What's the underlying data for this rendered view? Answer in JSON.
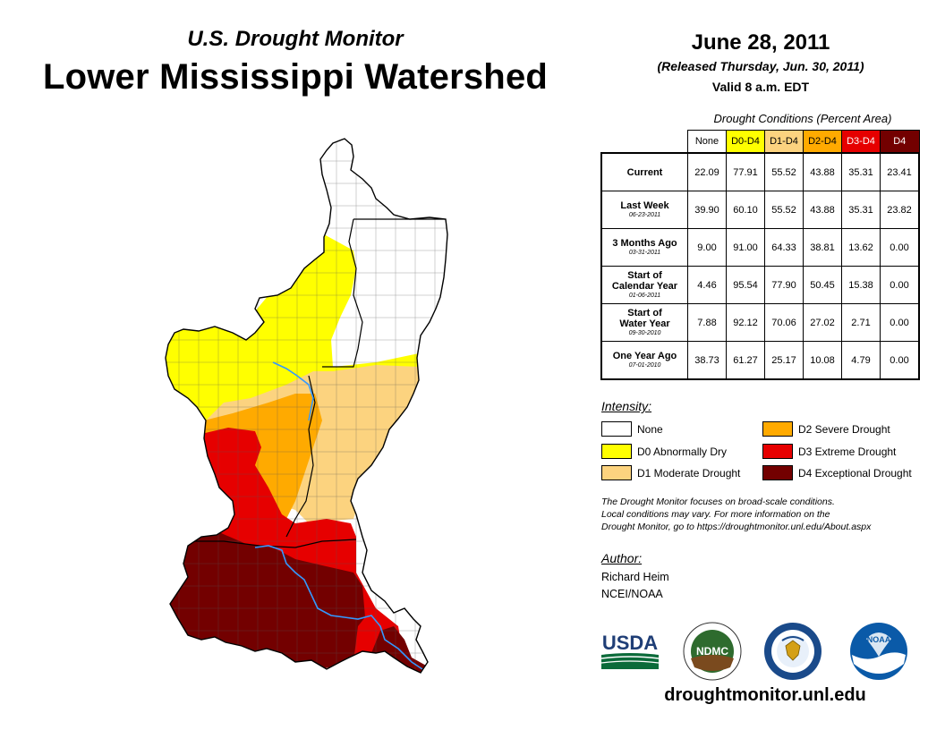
{
  "header": {
    "subtitle": "U.S. Drought Monitor",
    "title": "Lower Mississippi Watershed",
    "date": "June 28, 2011",
    "released": "(Released Thursday, Jun. 30, 2011)",
    "valid": "Valid 8 a.m. EDT"
  },
  "conditions": {
    "title": "Drought Conditions (Percent Area)",
    "columns": [
      "None",
      "D0-D4",
      "D1-D4",
      "D2-D4",
      "D3-D4",
      "D4"
    ],
    "column_colors": [
      "#ffffff",
      "#ffff00",
      "#fcd37f",
      "#ffaa00",
      "#e60000",
      "#730000"
    ],
    "rows": [
      {
        "label": "Current",
        "date": "",
        "values": [
          "22.09",
          "77.91",
          "55.52",
          "43.88",
          "35.31",
          "23.41"
        ]
      },
      {
        "label": "Last Week",
        "date": "06-23-2011",
        "values": [
          "39.90",
          "60.10",
          "55.52",
          "43.88",
          "35.31",
          "23.82"
        ]
      },
      {
        "label": "3 Months Ago",
        "date": "03-31-2011",
        "values": [
          "9.00",
          "91.00",
          "64.33",
          "38.81",
          "13.62",
          "0.00"
        ]
      },
      {
        "label_lines": [
          "Start of",
          "Calendar Year"
        ],
        "date": "01-06-2011",
        "values": [
          "4.46",
          "95.54",
          "77.90",
          "50.45",
          "15.38",
          "0.00"
        ]
      },
      {
        "label_lines": [
          "Start of",
          "Water Year"
        ],
        "date": "09-30-2010",
        "values": [
          "7.88",
          "92.12",
          "70.06",
          "27.02",
          "2.71",
          "0.00"
        ]
      },
      {
        "label": "One Year Ago",
        "date": "07-01-2010",
        "values": [
          "38.73",
          "61.27",
          "25.17",
          "10.08",
          "4.79",
          "0.00"
        ]
      }
    ]
  },
  "legend": {
    "title": "Intensity:",
    "items": [
      {
        "label": "None",
        "color": "#ffffff"
      },
      {
        "label": "D0 Abnormally Dry",
        "color": "#ffff00"
      },
      {
        "label": "D1 Moderate Drought",
        "color": "#fcd37f"
      },
      {
        "label": "D2 Severe Drought",
        "color": "#ffaa00"
      },
      {
        "label": "D3 Extreme Drought",
        "color": "#e60000"
      },
      {
        "label": "D4 Exceptional Drought",
        "color": "#730000"
      }
    ]
  },
  "note": {
    "line1": "The Drought Monitor focuses on broad-scale conditions.",
    "line2": "Local conditions may vary. For more information on the",
    "line3": "Drought Monitor, go to https://droughtmonitor.unl.edu/About.aspx"
  },
  "author": {
    "title": "Author:",
    "name": "Richard Heim",
    "org": "NCEI/NOAA"
  },
  "logos": {
    "usda": "USDA",
    "ndmc": "NDMC",
    "noaa": "NOAA"
  },
  "footer": {
    "website": "droughtmonitor.unl.edu"
  },
  "map": {
    "river_color": "#3399ff",
    "border_color": "#000000"
  }
}
